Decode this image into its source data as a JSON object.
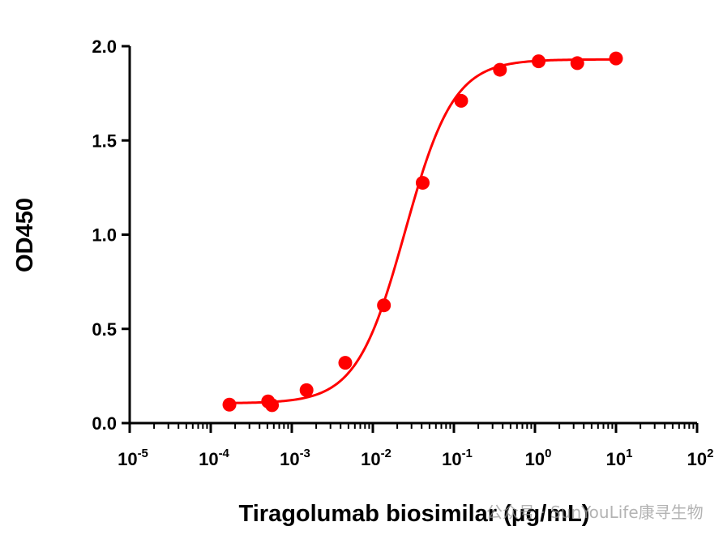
{
  "chart_data": {
    "type": "scatter",
    "title": "",
    "xlabel": "Tiragolumab biosimilar (μg/mL)",
    "ylabel": "OD450",
    "x_scale": "log",
    "xlim": [
      1e-05,
      100
    ],
    "ylim": [
      0,
      2.0
    ],
    "y_ticks": [
      "0.0",
      "0.5",
      "1.0",
      "1.5",
      "2.0"
    ],
    "x_ticks": [
      {
        "base": "10",
        "exp": "-5"
      },
      {
        "base": "10",
        "exp": "-4"
      },
      {
        "base": "10",
        "exp": "-3"
      },
      {
        "base": "10",
        "exp": "-2"
      },
      {
        "base": "10",
        "exp": "-1"
      },
      {
        "base": "10",
        "exp": "0"
      },
      {
        "base": "10",
        "exp": "1"
      },
      {
        "base": "10",
        "exp": "2"
      }
    ],
    "grid": false,
    "color": "#ff0000",
    "series": [
      {
        "points": [
          {
            "x": 0.00057,
            "y": 0.095
          },
          {
            "x": 0.00017,
            "y": 0.098
          },
          {
            "x": 0.00051,
            "y": 0.115
          },
          {
            "x": 0.00152,
            "y": 0.175
          },
          {
            "x": 0.00457,
            "y": 0.32
          },
          {
            "x": 0.0137,
            "y": 0.625
          },
          {
            "x": 0.0412,
            "y": 1.275
          },
          {
            "x": 0.123,
            "y": 1.71
          },
          {
            "x": 0.37,
            "y": 1.875
          },
          {
            "x": 1.11,
            "y": 1.92
          },
          {
            "x": 3.33,
            "y": 1.91
          },
          {
            "x": 10.0,
            "y": 1.935
          }
        ],
        "fit": {
          "model": "4PL",
          "bottom": 0.105,
          "top": 1.93,
          "ec50": 0.025,
          "hill": 1.45
        }
      }
    ]
  },
  "watermark": "公众号 · SunYouLife康寻生物"
}
